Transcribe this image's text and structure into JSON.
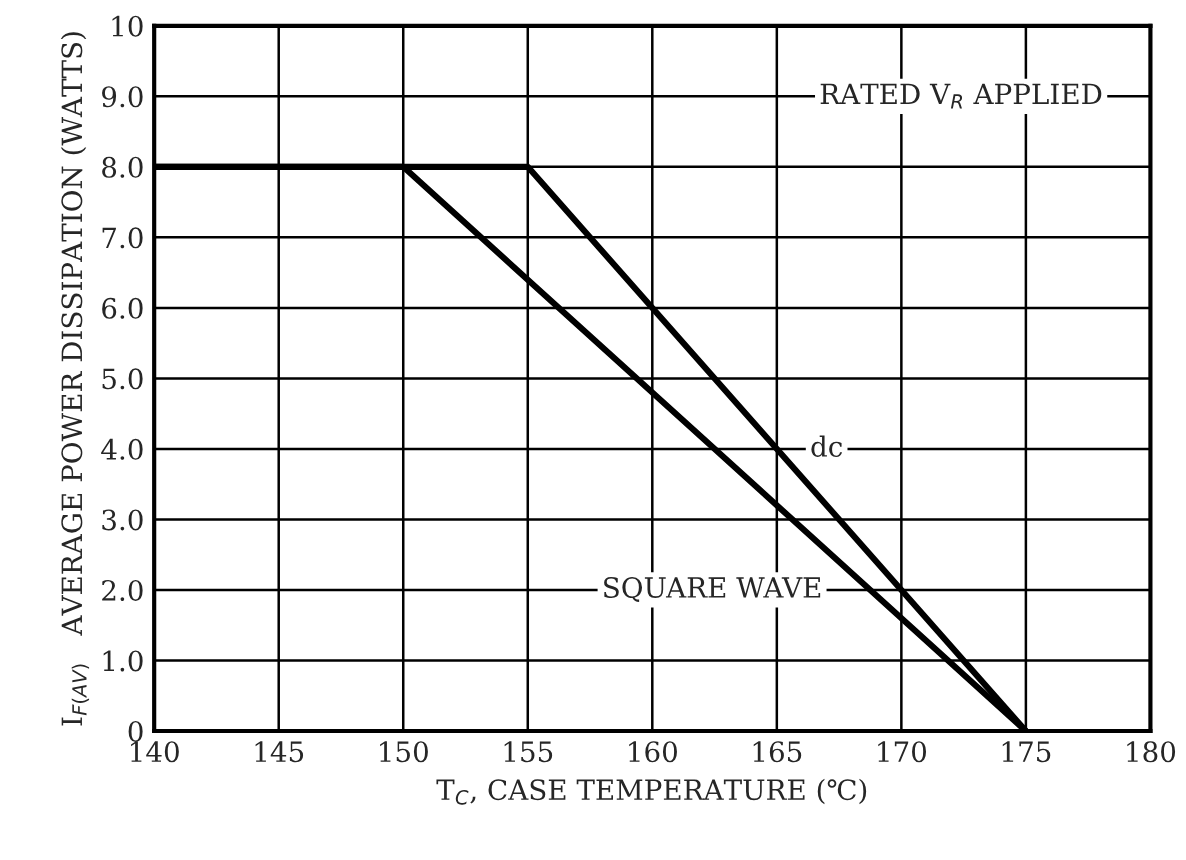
{
  "chart_data": {
    "type": "line",
    "xlabel": "T$_{C}$, CASE TEMPERATURE (℃)",
    "ylabel": "I$_{F(AV)}$   AVERAGE POWER DISSIPATION (WATTS)",
    "annotations": [
      "RATED V$_{R}$ APPLIED"
    ],
    "series": [
      {
        "name": "dc",
        "color": "#000000",
        "x": [
          140,
          155,
          175
        ],
        "values": [
          8.0,
          8.0,
          0
        ]
      },
      {
        "name": "SQUARE WAVE",
        "color": "#000000",
        "x": [
          140,
          150,
          175
        ],
        "values": [
          8.0,
          8.0,
          0
        ]
      }
    ],
    "xlim": [
      140,
      180
    ],
    "xticks": [
      140,
      145,
      150,
      155,
      160,
      165,
      170,
      175,
      180
    ],
    "ylim": [
      0,
      10
    ],
    "yticks": [
      0,
      {
        "value": 1,
        "label": "1.0"
      },
      {
        "value": 2,
        "label": "2.0"
      },
      {
        "value": 3,
        "label": "3.0"
      },
      {
        "value": 4,
        "label": "4.0"
      },
      {
        "value": 5,
        "label": "5.0"
      },
      {
        "value": 6,
        "label": "6.0"
      },
      {
        "value": 7,
        "label": "7.0"
      },
      {
        "value": 8,
        "label": "8.0"
      },
      {
        "value": 9,
        "label": "9.0"
      },
      10
    ],
    "grid": true,
    "marker": "none",
    "line_style": "solid"
  }
}
